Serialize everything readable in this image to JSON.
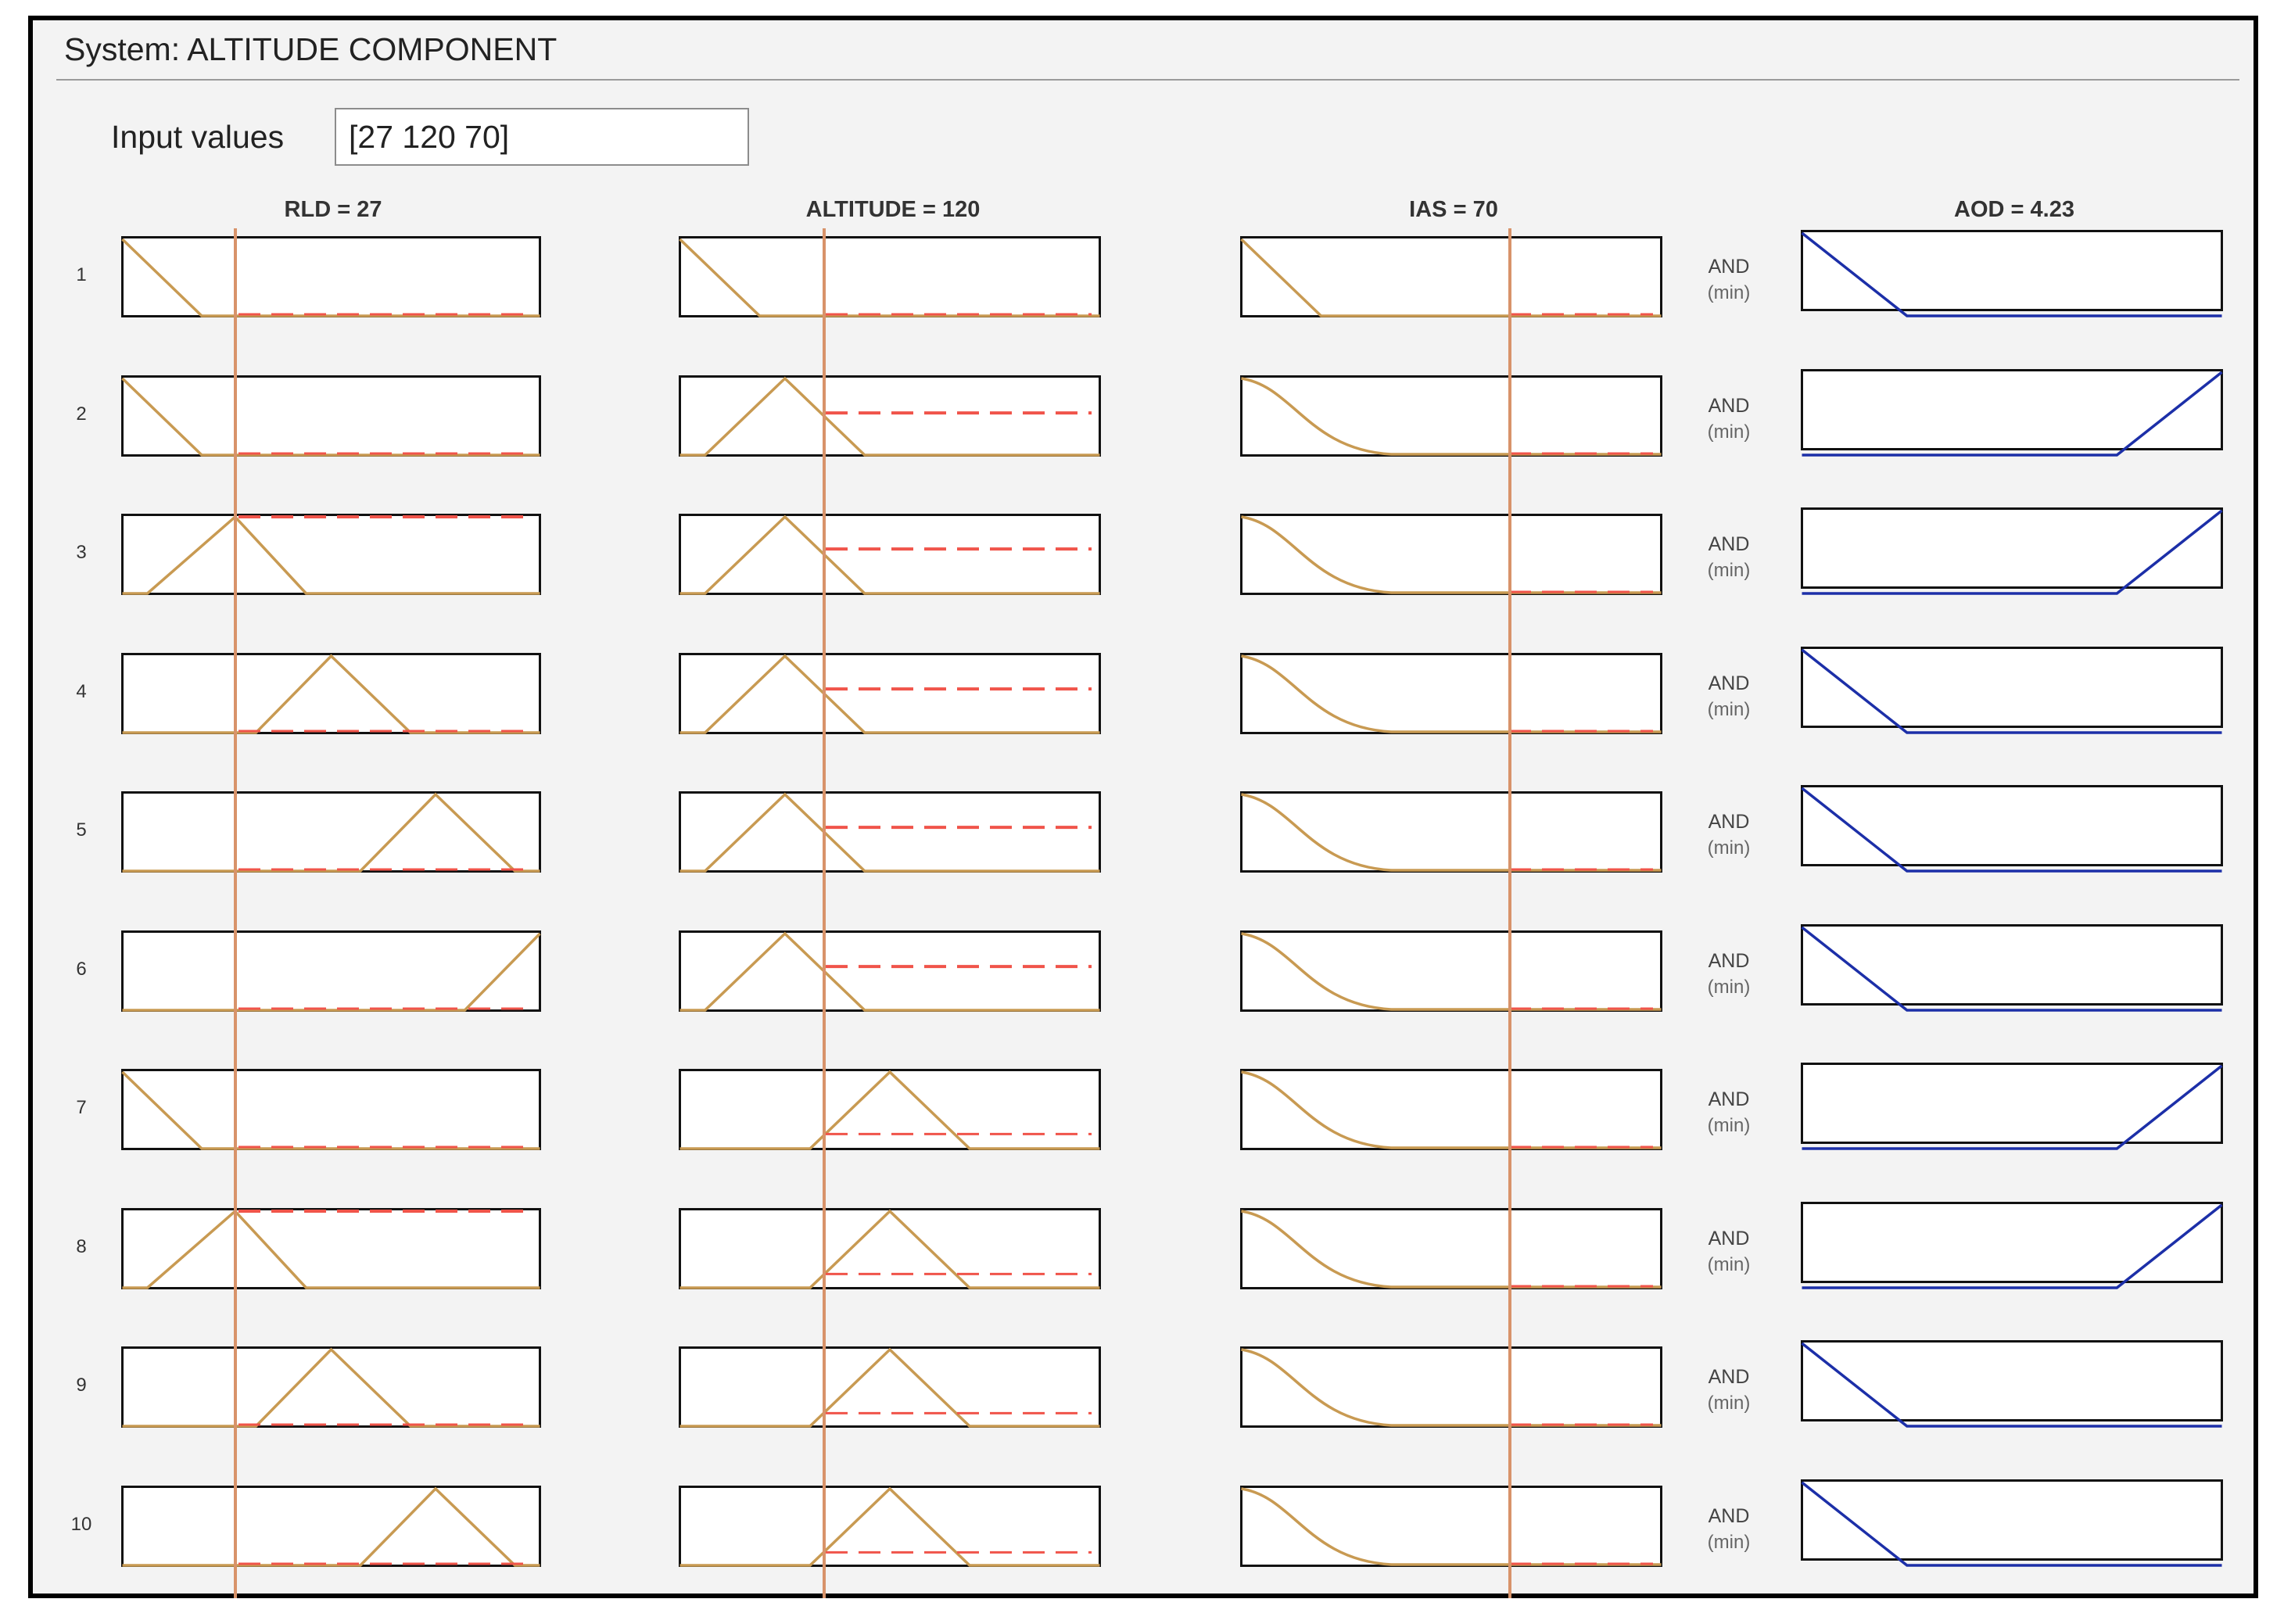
{
  "system": {
    "title": "System: ALTITUDE COMPONENT"
  },
  "input": {
    "label": "Input values",
    "value": "[27 120 70]"
  },
  "columns": [
    {
      "label": "RLD = 27"
    },
    {
      "label": "ALTITUDE = 120"
    },
    {
      "label": "IAS = 70"
    },
    {
      "label": "AOD = 4.23"
    }
  ],
  "and_label": "AND",
  "and_sub": "(min)",
  "rules": [
    "1",
    "2",
    "3",
    "4",
    "5",
    "6",
    "7",
    "8",
    "9",
    "10"
  ],
  "colors": {
    "input_mf": "#c89a52",
    "firing_level": "#f0544a",
    "output_mf": "#1c2fa8",
    "input_marker": "#d8936a"
  },
  "chart_data": {
    "type": "fuzzy-rule-viewer",
    "inputs": [
      {
        "name": "RLD",
        "value": 27,
        "range": [
          0,
          100
        ]
      },
      {
        "name": "ALTITUDE",
        "value": 120,
        "range": [
          0,
          400
        ]
      },
      {
        "name": "IAS",
        "value": 70,
        "range": [
          0,
          100
        ]
      }
    ],
    "output": {
      "name": "AOD",
      "value": 4.23
    },
    "rule_mfs": [
      {
        "rld": "low",
        "alt": "low",
        "ias": "zmf-narrow",
        "aod": "low"
      },
      {
        "rld": "low",
        "alt": "mid",
        "ias": "zmf-wide",
        "aod": "high"
      },
      {
        "rld": "lowmid",
        "alt": "mid",
        "ias": "zmf-wide",
        "aod": "high"
      },
      {
        "rld": "mid",
        "alt": "mid",
        "ias": "zmf-wide",
        "aod": "low"
      },
      {
        "rld": "midhigh",
        "alt": "mid",
        "ias": "zmf-wide",
        "aod": "low"
      },
      {
        "rld": "high",
        "alt": "mid",
        "ias": "zmf-wide",
        "aod": "low"
      },
      {
        "rld": "low",
        "alt": "midhigh",
        "ias": "zmf-wide",
        "aod": "high"
      },
      {
        "rld": "lowmid",
        "alt": "midhigh",
        "ias": "zmf-wide",
        "aod": "high"
      },
      {
        "rld": "mid",
        "alt": "midhigh",
        "ias": "zmf-wide",
        "aod": "low"
      },
      {
        "rld": "midhigh",
        "alt": "midhigh",
        "ias": "zmf-wide",
        "aod": "low"
      }
    ]
  }
}
